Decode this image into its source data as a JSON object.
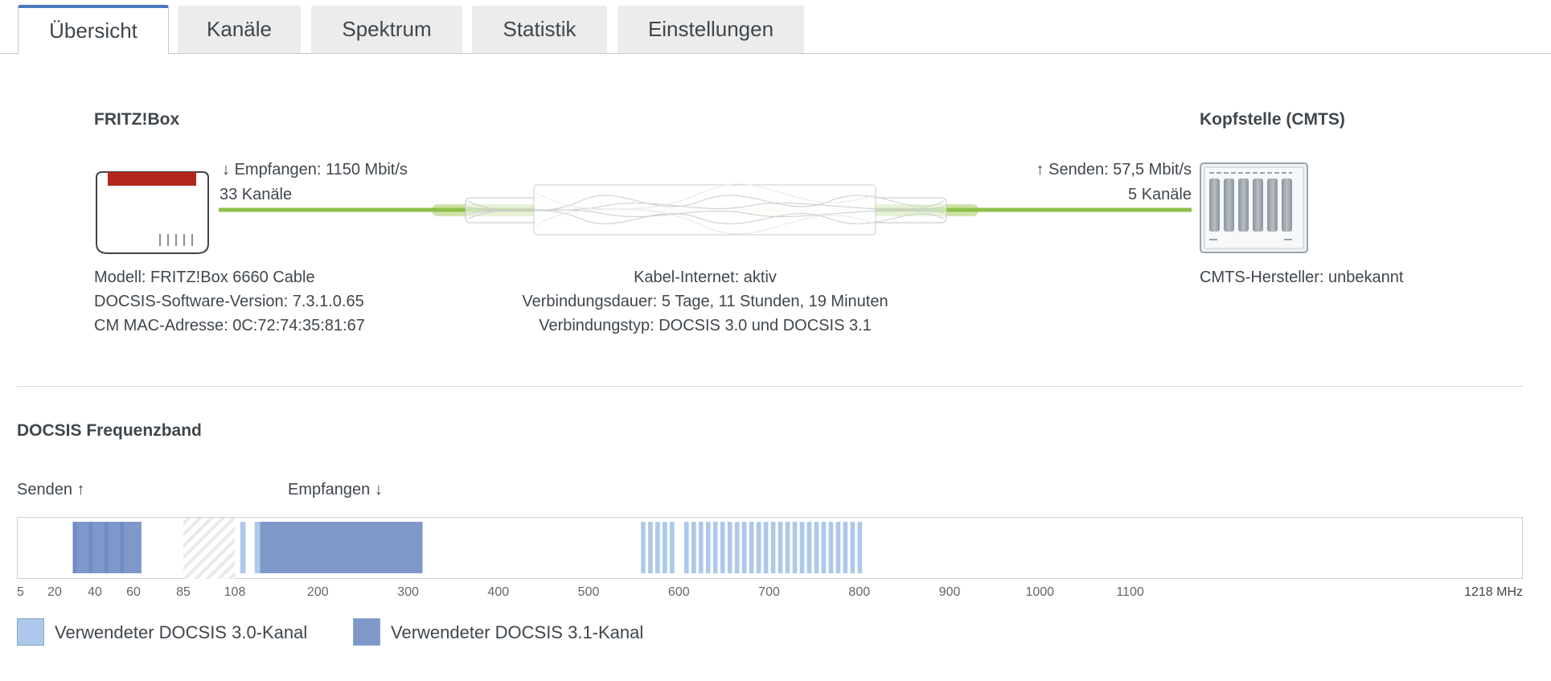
{
  "tabs": [
    {
      "label": "Übersicht",
      "active": true
    },
    {
      "label": "Kanäle",
      "active": false
    },
    {
      "label": "Spektrum",
      "active": false
    },
    {
      "label": "Statistik",
      "active": false
    },
    {
      "label": "Einstellungen",
      "active": false
    }
  ],
  "overview": {
    "fritzbox": {
      "title": "FRITZ!Box",
      "model": "Modell: FRITZ!Box 6660 Cable",
      "docsis_software": "DOCSIS-Software-Version: 7.3.1.0.65",
      "cm_mac": "CM MAC-Adresse: 0C:72:74:35:81:67"
    },
    "downstream": {
      "arrow": "↓",
      "rate": "Empfangen: 1150 Mbit/s",
      "channels": "33 Kanäle"
    },
    "upstream": {
      "arrow": "↑",
      "rate": "Senden: 57,5 Mbit/s",
      "channels": "5 Kanäle"
    },
    "connection": {
      "status": "Kabel-Internet: aktiv",
      "duration": "Verbindungsdauer: 5 Tage, 11 Stunden, 19 Minuten",
      "type": "Verbindungstyp: DOCSIS 3.0 und DOCSIS 3.1"
    },
    "cmts": {
      "title": "Kopfstelle (CMTS)",
      "manufacturer": "CMTS-Hersteller: unbekannt"
    }
  },
  "band": {
    "title": "DOCSIS Frequenzband",
    "send_label": "Senden ↑",
    "receive_label": "Empfangen ↓",
    "ticks": [
      "5",
      "20",
      "40",
      "60",
      "85",
      "108",
      "200",
      "300",
      "400",
      "500",
      "600",
      "700",
      "800",
      "900",
      "1000",
      "1100",
      "1218 MHz"
    ],
    "legend": [
      {
        "label": "Verwendeter DOCSIS 3.0-Kanal",
        "color": "#adc8ea"
      },
      {
        "label": "Verwendeter DOCSIS 3.1-Kanal",
        "color": "#7f98c9"
      }
    ],
    "upstream_docsis31_mhz": [
      29,
      64
    ],
    "upstream_docsis30_channels_mhz": [
      [
        29,
        31
      ],
      [
        37,
        39
      ],
      [
        45,
        47
      ],
      [
        53,
        55
      ]
    ],
    "guard_band_mhz": [
      85,
      108
    ],
    "downstream_docsis30_channels_mhz": [
      [
        114,
        120
      ],
      [
        130,
        136
      ],
      [
        558,
        563
      ],
      [
        566,
        571
      ],
      [
        574,
        579
      ],
      [
        582,
        587
      ],
      [
        590,
        595
      ],
      [
        606,
        611
      ],
      [
        614,
        619
      ],
      [
        622,
        627
      ],
      [
        630,
        635
      ],
      [
        638,
        643
      ],
      [
        646,
        651
      ],
      [
        654,
        659
      ],
      [
        662,
        667
      ],
      [
        670,
        675
      ],
      [
        678,
        683
      ],
      [
        686,
        691
      ],
      [
        694,
        699
      ],
      [
        702,
        707
      ],
      [
        710,
        715
      ],
      [
        718,
        723
      ],
      [
        726,
        731
      ],
      [
        734,
        739
      ],
      [
        742,
        747
      ],
      [
        750,
        755
      ],
      [
        758,
        763
      ],
      [
        766,
        771
      ],
      [
        774,
        779
      ],
      [
        782,
        787
      ],
      [
        790,
        795
      ],
      [
        798,
        803
      ]
    ],
    "downstream_docsis31_mhz": [
      [
        136,
        316
      ]
    ]
  }
}
